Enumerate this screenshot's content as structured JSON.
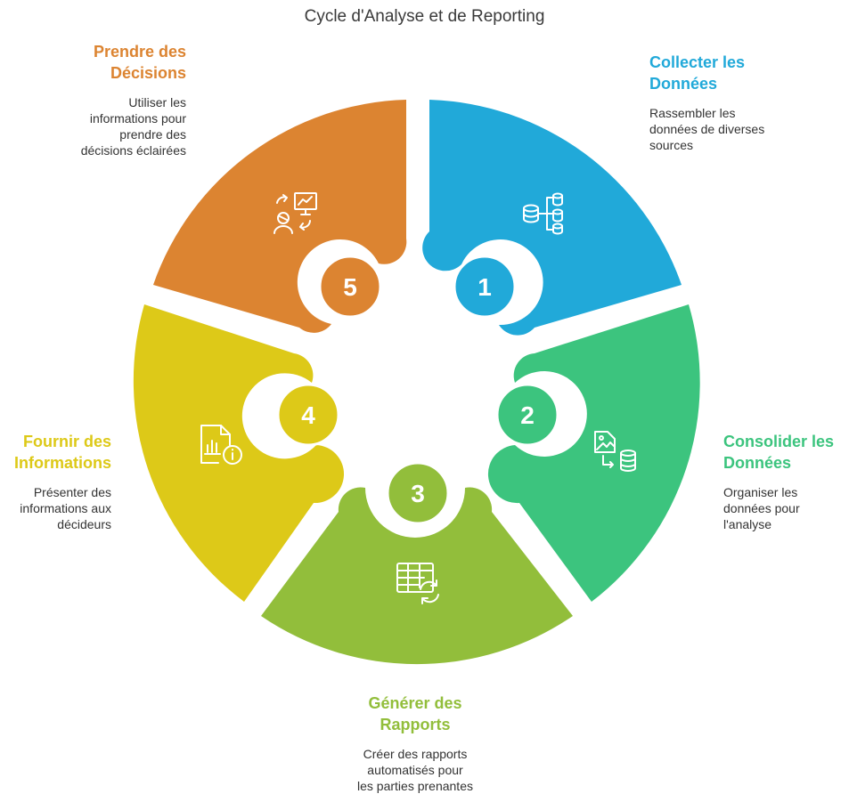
{
  "title": "Cycle d'Analyse et de Reporting",
  "steps": [
    {
      "number": "1",
      "title_lines": [
        "Collecter les",
        "Données"
      ],
      "desc_lines": [
        "Rassembler les",
        "données de diverses",
        "sources"
      ],
      "color": "#21A9D9",
      "icon": "database-network-icon"
    },
    {
      "number": "2",
      "title_lines": [
        "Consolider les",
        "Données"
      ],
      "desc_lines": [
        "Organiser les",
        "données pour",
        "l'analyse"
      ],
      "color": "#3CC47E",
      "icon": "file-to-database-icon"
    },
    {
      "number": "3",
      "title_lines": [
        "Générer des",
        "Rapports"
      ],
      "desc_lines": [
        "Créer des rapports",
        "automatisés pour",
        "les parties prenantes"
      ],
      "color": "#92BE3B",
      "icon": "table-refresh-icon"
    },
    {
      "number": "4",
      "title_lines": [
        "Fournir des",
        "Informations"
      ],
      "desc_lines": [
        "Présenter des",
        "informations aux",
        "décideurs"
      ],
      "color": "#DDC918",
      "icon": "report-info-icon"
    },
    {
      "number": "5",
      "title_lines": [
        "Prendre des",
        "Décisions"
      ],
      "desc_lines": [
        "Utiliser les",
        "informations pour",
        "prendre des",
        "décisions éclairées"
      ],
      "color": "#DC8431",
      "icon": "person-presentation-cycle-icon"
    }
  ]
}
